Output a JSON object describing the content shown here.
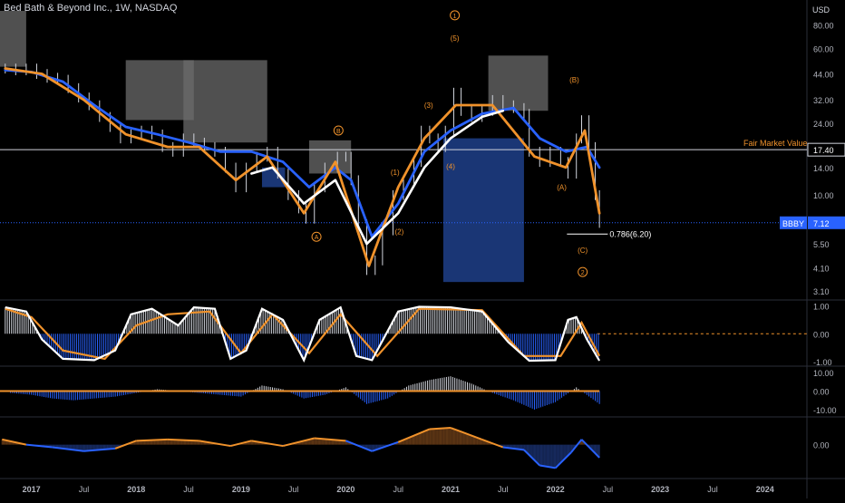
{
  "chart_data": {
    "type": "line",
    "title": "Bed Bath & Beyond Inc., 1W, NASDAQ",
    "currency": "USD",
    "y_scale": "log",
    "price_axis": {
      "ticks": [
        80,
        60,
        44,
        32,
        24,
        17.4,
        14,
        10,
        7.12,
        5.5,
        4.1,
        3.1
      ],
      "tick_labels": [
        "80.00",
        "60.00",
        "44.00",
        "32.00",
        "24.00",
        "17.40",
        "14.00",
        "10.00",
        "7.12",
        "5.50",
        "4.10",
        "3.10"
      ],
      "range": [
        2.8,
        95
      ]
    },
    "time_axis": {
      "labels": [
        "2017",
        "Jul",
        "2018",
        "Jul",
        "2019",
        "Jul",
        "2020",
        "Jul",
        "2021",
        "Jul",
        "2022",
        "Jul",
        "2023",
        "Jul",
        "2024"
      ],
      "range_years": [
        2016.7,
        2024.4
      ]
    },
    "price_series": [
      {
        "t": 2016.75,
        "v": 47
      },
      {
        "t": 2016.85,
        "v": 46
      },
      {
        "t": 2016.95,
        "v": 47
      },
      {
        "t": 2017.05,
        "v": 44
      },
      {
        "t": 2017.15,
        "v": 42
      },
      {
        "t": 2017.25,
        "v": 41
      },
      {
        "t": 2017.35,
        "v": 37
      },
      {
        "t": 2017.45,
        "v": 33
      },
      {
        "t": 2017.55,
        "v": 30
      },
      {
        "t": 2017.65,
        "v": 26
      },
      {
        "t": 2017.75,
        "v": 23
      },
      {
        "t": 2017.85,
        "v": 20
      },
      {
        "t": 2017.95,
        "v": 21
      },
      {
        "t": 2018.05,
        "v": 22
      },
      {
        "t": 2018.15,
        "v": 21
      },
      {
        "t": 2018.25,
        "v": 18
      },
      {
        "t": 2018.35,
        "v": 17
      },
      {
        "t": 2018.45,
        "v": 20
      },
      {
        "t": 2018.55,
        "v": 19
      },
      {
        "t": 2018.65,
        "v": 18
      },
      {
        "t": 2018.75,
        "v": 17
      },
      {
        "t": 2018.85,
        "v": 14
      },
      {
        "t": 2018.95,
        "v": 11
      },
      {
        "t": 2019.05,
        "v": 14
      },
      {
        "t": 2019.15,
        "v": 16
      },
      {
        "t": 2019.25,
        "v": 17
      },
      {
        "t": 2019.35,
        "v": 13
      },
      {
        "t": 2019.45,
        "v": 10
      },
      {
        "t": 2019.55,
        "v": 8.5
      },
      {
        "t": 2019.62,
        "v": 7.5
      },
      {
        "t": 2019.7,
        "v": 11
      },
      {
        "t": 2019.8,
        "v": 14
      },
      {
        "t": 2019.92,
        "v": 16
      },
      {
        "t": 2020.0,
        "v": 16
      },
      {
        "t": 2020.05,
        "v": 12
      },
      {
        "t": 2020.12,
        "v": 7
      },
      {
        "t": 2020.2,
        "v": 4
      },
      {
        "t": 2020.28,
        "v": 4.5
      },
      {
        "t": 2020.35,
        "v": 6.5
      },
      {
        "t": 2020.45,
        "v": 10
      },
      {
        "t": 2020.55,
        "v": 12
      },
      {
        "t": 2020.65,
        "v": 15
      },
      {
        "t": 2020.72,
        "v": 22
      },
      {
        "t": 2020.8,
        "v": 20
      },
      {
        "t": 2020.88,
        "v": 18
      },
      {
        "t": 2020.95,
        "v": 22
      },
      {
        "t": 2021.03,
        "v": 35
      },
      {
        "t": 2021.1,
        "v": 28
      },
      {
        "t": 2021.2,
        "v": 26
      },
      {
        "t": 2021.3,
        "v": 28
      },
      {
        "t": 2021.4,
        "v": 32
      },
      {
        "t": 2021.5,
        "v": 30
      },
      {
        "t": 2021.6,
        "v": 29
      },
      {
        "t": 2021.7,
        "v": 27
      },
      {
        "t": 2021.75,
        "v": 17
      },
      {
        "t": 2021.85,
        "v": 15
      },
      {
        "t": 2021.95,
        "v": 17
      },
      {
        "t": 2022.05,
        "v": 15
      },
      {
        "t": 2022.12,
        "v": 13
      },
      {
        "t": 2022.2,
        "v": 20
      },
      {
        "t": 2022.25,
        "v": 25
      },
      {
        "t": 2022.32,
        "v": 18
      },
      {
        "t": 2022.38,
        "v": 10
      },
      {
        "t": 2022.42,
        "v": 7.12
      }
    ],
    "series": [
      {
        "name": "",
        "color": "#2962ff",
        "values": [
          {
            "t": 2016.75,
            "v": 46
          },
          {
            "t": 2017.0,
            "v": 45
          },
          {
            "t": 2017.3,
            "v": 40
          },
          {
            "t": 2017.6,
            "v": 30
          },
          {
            "t": 2017.9,
            "v": 23
          },
          {
            "t": 2018.2,
            "v": 21
          },
          {
            "t": 2018.5,
            "v": 19
          },
          {
            "t": 2018.8,
            "v": 17
          },
          {
            "t": 2019.1,
            "v": 17
          },
          {
            "t": 2019.4,
            "v": 15
          },
          {
            "t": 2019.65,
            "v": 11
          },
          {
            "t": 2019.9,
            "v": 14
          },
          {
            "t": 2020.05,
            "v": 12
          },
          {
            "t": 2020.25,
            "v": 6
          },
          {
            "t": 2020.5,
            "v": 9
          },
          {
            "t": 2020.75,
            "v": 17
          },
          {
            "t": 2021.0,
            "v": 22
          },
          {
            "t": 2021.3,
            "v": 27
          },
          {
            "t": 2021.6,
            "v": 29
          },
          {
            "t": 2021.85,
            "v": 20
          },
          {
            "t": 2022.1,
            "v": 17
          },
          {
            "t": 2022.3,
            "v": 18
          },
          {
            "t": 2022.42,
            "v": 14
          }
        ]
      },
      {
        "name": "",
        "color": "#f0922b",
        "values": [
          {
            "t": 2016.75,
            "v": 47
          },
          {
            "t": 2017.1,
            "v": 44
          },
          {
            "t": 2017.5,
            "v": 32
          },
          {
            "t": 2017.9,
            "v": 21
          },
          {
            "t": 2018.3,
            "v": 18
          },
          {
            "t": 2018.6,
            "v": 18
          },
          {
            "t": 2018.95,
            "v": 12
          },
          {
            "t": 2019.25,
            "v": 16
          },
          {
            "t": 2019.6,
            "v": 8
          },
          {
            "t": 2019.9,
            "v": 15
          },
          {
            "t": 2020.22,
            "v": 4.2
          },
          {
            "t": 2020.5,
            "v": 11
          },
          {
            "t": 2020.75,
            "v": 20
          },
          {
            "t": 2021.05,
            "v": 30
          },
          {
            "t": 2021.4,
            "v": 30
          },
          {
            "t": 2021.8,
            "v": 16
          },
          {
            "t": 2022.1,
            "v": 14
          },
          {
            "t": 2022.28,
            "v": 22
          },
          {
            "t": 2022.42,
            "v": 8
          }
        ]
      },
      {
        "name": "",
        "color": "#ffffff",
        "values": [
          {
            "t": 2019.1,
            "v": 13
          },
          {
            "t": 2019.3,
            "v": 14
          },
          {
            "t": 2019.6,
            "v": 9
          },
          {
            "t": 2019.9,
            "v": 12
          },
          {
            "t": 2020.2,
            "v": 5.5
          },
          {
            "t": 2020.5,
            "v": 8
          },
          {
            "t": 2020.75,
            "v": 14
          },
          {
            "t": 2021.0,
            "v": 20
          },
          {
            "t": 2021.3,
            "v": 26
          },
          {
            "t": 2021.5,
            "v": 28
          }
        ]
      }
    ],
    "fair_market_value": {
      "label": "Fair Market Value",
      "value": 17.4,
      "value_label": "17.40"
    },
    "last_price": {
      "symbol": "BBBY",
      "value": 7.12,
      "value_label": "7.12",
      "color": "#2962ff"
    },
    "fib_level": {
      "label": "0.786(6.20)",
      "value": 6.2,
      "t_start": 2022.11,
      "t_end": 2022.5
    },
    "wave_labels": [
      {
        "text": "1",
        "circled": true,
        "t": 2021.04,
        "v": 90
      },
      {
        "text": "(5)",
        "circled": false,
        "t": 2021.04,
        "v": 68
      },
      {
        "text": "(3)",
        "circled": false,
        "t": 2020.79,
        "v": 30
      },
      {
        "text": "(4)",
        "circled": false,
        "t": 2021.0,
        "v": 14.2
      },
      {
        "text": "(1)",
        "circled": false,
        "t": 2020.47,
        "v": 13.2
      },
      {
        "text": "(2)",
        "circled": false,
        "t": 2020.51,
        "v": 6.4
      },
      {
        "text": "B",
        "circled": true,
        "t": 2019.93,
        "v": 22
      },
      {
        "text": "A",
        "circled": true,
        "t": 2019.72,
        "v": 6.0
      },
      {
        "text": "(B)",
        "circled": false,
        "t": 2022.18,
        "v": 41
      },
      {
        "text": "(A)",
        "circled": false,
        "t": 2022.06,
        "v": 11
      },
      {
        "text": "(C)",
        "circled": false,
        "t": 2022.26,
        "v": 5.1
      },
      {
        "text": "2",
        "circled": true,
        "t": 2022.26,
        "v": 3.9
      }
    ],
    "shaded_zones": [
      {
        "color": "#6b6b6b",
        "t0": 2016.7,
        "t1": 2016.95,
        "v0": 48,
        "v1": 95
      },
      {
        "color": "#6b6b6b",
        "t0": 2017.9,
        "t1": 2018.55,
        "v0": 25,
        "v1": 52
      },
      {
        "color": "#6b6b6b",
        "t0": 2018.45,
        "t1": 2019.25,
        "v0": 19,
        "v1": 52
      },
      {
        "color": "#6b6b6b",
        "t0": 2019.65,
        "t1": 2020.05,
        "v0": 13,
        "v1": 19.5
      },
      {
        "color": "#6b6b6b",
        "t0": 2021.36,
        "t1": 2021.93,
        "v0": 28,
        "v1": 55
      },
      {
        "color": "#1e3f8a",
        "t0": 2019.2,
        "t1": 2019.42,
        "v0": 11,
        "v1": 14
      },
      {
        "color": "#1e3f8a",
        "t0": 2020.93,
        "t1": 2021.7,
        "v0": 3.45,
        "v1": 20
      }
    ],
    "oscillators": [
      {
        "name": "",
        "ticks": [
          1.0,
          0.0,
          -1.0
        ],
        "tick_labels": [
          "1.00",
          "0.00",
          "-1.00"
        ],
        "range": [
          -1.1,
          1.15
        ],
        "fast": [
          {
            "t": 2016.75,
            "v": 0.95
          },
          {
            "t": 2016.95,
            "v": 0.8
          },
          {
            "t": 2017.1,
            "v": -0.2
          },
          {
            "t": 2017.3,
            "v": -0.9
          },
          {
            "t": 2017.6,
            "v": -0.95
          },
          {
            "t": 2017.8,
            "v": -0.6
          },
          {
            "t": 2017.95,
            "v": 0.7
          },
          {
            "t": 2018.15,
            "v": 0.9
          },
          {
            "t": 2018.4,
            "v": 0.3
          },
          {
            "t": 2018.55,
            "v": 0.95
          },
          {
            "t": 2018.75,
            "v": 0.9
          },
          {
            "t": 2018.9,
            "v": -0.9
          },
          {
            "t": 2019.05,
            "v": -0.6
          },
          {
            "t": 2019.2,
            "v": 0.9
          },
          {
            "t": 2019.4,
            "v": 0.5
          },
          {
            "t": 2019.6,
            "v": -0.95
          },
          {
            "t": 2019.75,
            "v": 0.5
          },
          {
            "t": 2019.95,
            "v": 0.95
          },
          {
            "t": 2020.1,
            "v": -0.8
          },
          {
            "t": 2020.25,
            "v": -0.95
          },
          {
            "t": 2020.5,
            "v": 0.8
          },
          {
            "t": 2020.7,
            "v": 0.97
          },
          {
            "t": 2021.0,
            "v": 0.95
          },
          {
            "t": 2021.3,
            "v": 0.8
          },
          {
            "t": 2021.55,
            "v": -0.3
          },
          {
            "t": 2021.75,
            "v": -0.97
          },
          {
            "t": 2022.0,
            "v": -0.95
          },
          {
            "t": 2022.12,
            "v": 0.5
          },
          {
            "t": 2022.2,
            "v": 0.6
          },
          {
            "t": 2022.3,
            "v": -0.2
          },
          {
            "t": 2022.42,
            "v": -0.97
          }
        ],
        "slow": [
          {
            "t": 2016.75,
            "v": 0.9
          },
          {
            "t": 2017.0,
            "v": 0.6
          },
          {
            "t": 2017.3,
            "v": -0.6
          },
          {
            "t": 2017.7,
            "v": -0.9
          },
          {
            "t": 2018.0,
            "v": 0.3
          },
          {
            "t": 2018.3,
            "v": 0.7
          },
          {
            "t": 2018.7,
            "v": 0.8
          },
          {
            "t": 2019.0,
            "v": -0.7
          },
          {
            "t": 2019.3,
            "v": 0.7
          },
          {
            "t": 2019.65,
            "v": -0.7
          },
          {
            "t": 2019.95,
            "v": 0.7
          },
          {
            "t": 2020.3,
            "v": -0.8
          },
          {
            "t": 2020.7,
            "v": 0.9
          },
          {
            "t": 2021.3,
            "v": 0.85
          },
          {
            "t": 2021.7,
            "v": -0.8
          },
          {
            "t": 2022.05,
            "v": -0.8
          },
          {
            "t": 2022.25,
            "v": 0.4
          },
          {
            "t": 2022.42,
            "v": -0.8
          }
        ]
      },
      {
        "name": "",
        "ticks": [
          10.0,
          0.0,
          -10.0
        ],
        "tick_labels": [
          "10.00",
          "0.00",
          "-10.00"
        ],
        "range": [
          -13,
          12
        ],
        "bars": [
          {
            "t": 2016.8,
            "v": -1
          },
          {
            "t": 2017.0,
            "v": -2
          },
          {
            "t": 2017.2,
            "v": -4
          },
          {
            "t": 2017.4,
            "v": -5
          },
          {
            "t": 2017.6,
            "v": -4
          },
          {
            "t": 2017.8,
            "v": -3
          },
          {
            "t": 2018.0,
            "v": -1
          },
          {
            "t": 2018.2,
            "v": 1
          },
          {
            "t": 2018.4,
            "v": 0
          },
          {
            "t": 2018.6,
            "v": -1
          },
          {
            "t": 2018.8,
            "v": -2
          },
          {
            "t": 2019.0,
            "v": -3
          },
          {
            "t": 2019.2,
            "v": 3
          },
          {
            "t": 2019.4,
            "v": 1
          },
          {
            "t": 2019.6,
            "v": -4
          },
          {
            "t": 2019.8,
            "v": -2
          },
          {
            "t": 2020.0,
            "v": 2
          },
          {
            "t": 2020.2,
            "v": -7
          },
          {
            "t": 2020.4,
            "v": -4
          },
          {
            "t": 2020.6,
            "v": 3
          },
          {
            "t": 2020.8,
            "v": 6
          },
          {
            "t": 2021.0,
            "v": 8
          },
          {
            "t": 2021.2,
            "v": 4
          },
          {
            "t": 2021.4,
            "v": -1
          },
          {
            "t": 2021.6,
            "v": -5
          },
          {
            "t": 2021.8,
            "v": -10
          },
          {
            "t": 2022.0,
            "v": -6
          },
          {
            "t": 2022.2,
            "v": 2
          },
          {
            "t": 2022.42,
            "v": -7
          }
        ]
      },
      {
        "name": "",
        "ticks": [
          0.0
        ],
        "tick_labels": [
          "0.00"
        ],
        "range": [
          -1.2,
          1.0
        ],
        "line": [
          {
            "t": 2016.72,
            "v": 0.2
          },
          {
            "t": 2016.95,
            "v": 0.0
          },
          {
            "t": 2017.2,
            "v": -0.1
          },
          {
            "t": 2017.5,
            "v": -0.25
          },
          {
            "t": 2017.8,
            "v": -0.15
          },
          {
            "t": 2018.0,
            "v": 0.15
          },
          {
            "t": 2018.3,
            "v": 0.2
          },
          {
            "t": 2018.6,
            "v": 0.15
          },
          {
            "t": 2018.9,
            "v": -0.05
          },
          {
            "t": 2019.1,
            "v": 0.15
          },
          {
            "t": 2019.4,
            "v": -0.05
          },
          {
            "t": 2019.7,
            "v": 0.25
          },
          {
            "t": 2020.0,
            "v": 0.15
          },
          {
            "t": 2020.25,
            "v": -0.25
          },
          {
            "t": 2020.5,
            "v": 0.1
          },
          {
            "t": 2020.8,
            "v": 0.6
          },
          {
            "t": 2021.0,
            "v": 0.65
          },
          {
            "t": 2021.3,
            "v": 0.2
          },
          {
            "t": 2021.5,
            "v": -0.1
          },
          {
            "t": 2021.7,
            "v": -0.2
          },
          {
            "t": 2021.85,
            "v": -0.8
          },
          {
            "t": 2022.0,
            "v": -0.9
          },
          {
            "t": 2022.15,
            "v": -0.3
          },
          {
            "t": 2022.25,
            "v": 0.2
          },
          {
            "t": 2022.42,
            "v": -0.5
          }
        ]
      }
    ],
    "grid": false,
    "legend": "none"
  }
}
